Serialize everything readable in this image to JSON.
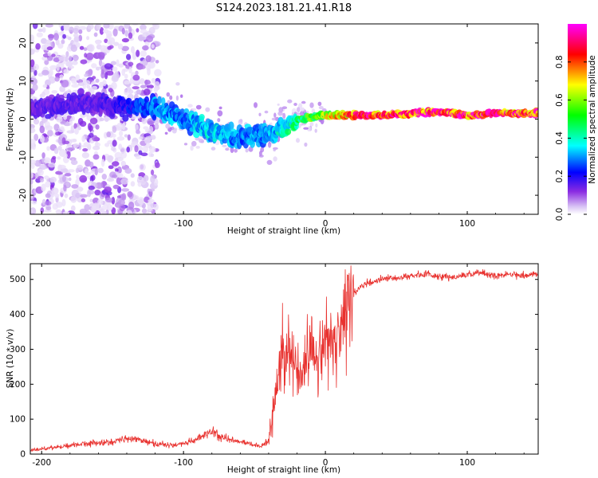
{
  "title": "S124.2023.181.21.41.R18",
  "chart_data": [
    {
      "type": "heatmap",
      "name": "spectrogram",
      "xlabel": "Height of straight line (km)",
      "ylabel": "Frequency (Hz)",
      "xlim": [
        -208,
        150
      ],
      "ylim": [
        -25,
        25
      ],
      "xticks": [
        -200,
        -100,
        0,
        100
      ],
      "yticks": [
        -20,
        -10,
        0,
        10,
        20
      ],
      "xtick_labels": [
        "-200",
        "-100",
        "0",
        "100"
      ],
      "ytick_labels": [
        "-20",
        "-10",
        "0",
        "10",
        "20"
      ],
      "colorbar": {
        "label": "Normalized spectral amplitude",
        "range": [
          0,
          1
        ],
        "ticks": [
          0.0,
          0.2,
          0.4,
          0.6,
          0.8
        ],
        "tick_labels": [
          "0.0",
          "0.2",
          "0.4",
          "0.6",
          "0.8"
        ],
        "colors": [
          "#ffffff",
          "#8a2be2",
          "#0000ff",
          "#00ffff",
          "#00ff00",
          "#ffff00",
          "#ff0000",
          "#ff00ff"
        ]
      },
      "ridge": {
        "x": [
          -200,
          -180,
          -160,
          -140,
          -120,
          -100,
          -80,
          -60,
          -40,
          -20,
          0,
          20,
          40,
          60,
          80,
          100,
          120,
          150
        ],
        "freq": [
          3,
          4,
          4,
          3,
          3,
          0,
          -3,
          -5,
          -4,
          0,
          1,
          1,
          1,
          1.5,
          2,
          1,
          1.5,
          1.5
        ],
        "amplitude": [
          0.15,
          0.15,
          0.15,
          0.2,
          0.3,
          0.3,
          0.35,
          0.3,
          0.3,
          0.45,
          0.6,
          0.85,
          0.85,
          0.85,
          0.9,
          0.85,
          0.85,
          0.85
        ]
      }
    },
    {
      "type": "line",
      "name": "snr",
      "xlabel": "Height of straight line (km)",
      "ylabel": "SNR (10 * v/v)",
      "xlim": [
        -208,
        150
      ],
      "ylim": [
        0,
        545
      ],
      "xticks": [
        -200,
        -100,
        0,
        100
      ],
      "yticks": [
        0,
        100,
        200,
        300,
        400,
        500
      ],
      "xtick_labels": [
        "-200",
        "-100",
        "0",
        "100"
      ],
      "ytick_labels": [
        "0",
        "100",
        "200",
        "300",
        "400",
        "500"
      ],
      "color": "#e8312e",
      "series": {
        "x": [
          -208,
          -200,
          -190,
          -180,
          -170,
          -160,
          -150,
          -140,
          -130,
          -120,
          -110,
          -100,
          -95,
          -90,
          -85,
          -80,
          -75,
          -70,
          -65,
          -60,
          -55,
          -50,
          -45,
          -40,
          -37,
          -34,
          -31,
          -28,
          -25,
          -22,
          -19,
          -16,
          -13,
          -10,
          -7,
          -4,
          -1,
          2,
          5,
          8,
          11,
          14,
          17,
          20,
          25,
          30,
          40,
          50,
          60,
          70,
          80,
          90,
          100,
          110,
          120,
          130,
          140,
          150
        ],
        "y": [
          10,
          15,
          20,
          25,
          30,
          32,
          35,
          45,
          40,
          30,
          25,
          30,
          35,
          45,
          55,
          65,
          50,
          45,
          40,
          35,
          30,
          25,
          22,
          40,
          120,
          200,
          280,
          320,
          300,
          260,
          220,
          250,
          280,
          300,
          280,
          300,
          330,
          340,
          320,
          300,
          350,
          400,
          440,
          460,
          480,
          490,
          500,
          505,
          510,
          515,
          510,
          505,
          515,
          520,
          510,
          515,
          512,
          515
        ]
      }
    }
  ]
}
